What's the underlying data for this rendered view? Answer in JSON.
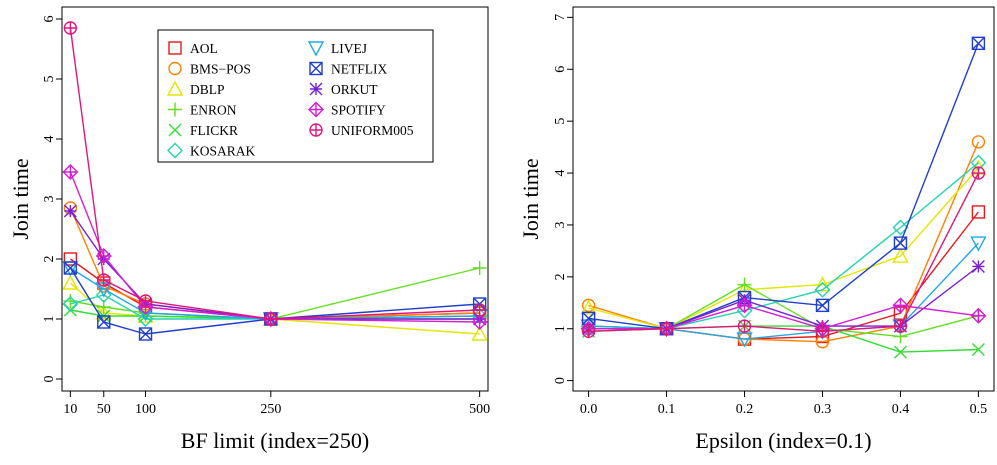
{
  "legend": [
    {
      "name": "AOL",
      "color": "#e41a1c",
      "marker": "square"
    },
    {
      "name": "BMS−POS",
      "color": "#ff7f00",
      "marker": "circle"
    },
    {
      "name": "DBLP",
      "color": "#e5e500",
      "marker": "triangle-up"
    },
    {
      "name": "ENRON",
      "color": "#66dd22",
      "marker": "plus"
    },
    {
      "name": "FLICKR",
      "color": "#33dd33",
      "marker": "x"
    },
    {
      "name": "KOSARAK",
      "color": "#22d4b0",
      "marker": "diamond"
    },
    {
      "name": "LIVEJ",
      "color": "#22a8e8",
      "marker": "triangle-down"
    },
    {
      "name": "NETFLIX",
      "color": "#1f3fcc",
      "marker": "square-x"
    },
    {
      "name": "ORKUT",
      "color": "#7a1fd6",
      "marker": "asterisk"
    },
    {
      "name": "SPOTIFY",
      "color": "#d41fd4",
      "marker": "diamond-plus"
    },
    {
      "name": "UNIFORM005",
      "color": "#e0167a",
      "marker": "circle-plus"
    }
  ],
  "chart_data": [
    {
      "type": "line",
      "xlabel": "BF limit (index=250)",
      "ylabel": "Join time",
      "x": [
        10,
        50,
        100,
        250,
        500
      ],
      "x_ticks": [
        "10",
        "50",
        "100",
        "250",
        "500"
      ],
      "y_ticks": [
        "0",
        "1",
        "2",
        "3",
        "4",
        "5",
        "6"
      ],
      "xlim": [
        0,
        510
      ],
      "ylim": [
        -0.2,
        6.2
      ],
      "legend_position": "top-right",
      "series": [
        {
          "name": "AOL",
          "values": [
            2.0,
            1.6,
            1.2,
            1.0,
            1.1
          ]
        },
        {
          "name": "BMS−POS",
          "values": [
            2.85,
            1.55,
            1.25,
            1.0,
            1.1
          ]
        },
        {
          "name": "DBLP",
          "values": [
            1.6,
            1.1,
            1.05,
            1.0,
            0.75
          ]
        },
        {
          "name": "ENRON",
          "values": [
            1.3,
            1.2,
            1.1,
            1.0,
            1.85
          ]
        },
        {
          "name": "FLICKR",
          "values": [
            1.15,
            1.05,
            1.05,
            1.0,
            1.0
          ]
        },
        {
          "name": "KOSARAK",
          "values": [
            1.25,
            1.4,
            1.0,
            1.0,
            1.05
          ]
        },
        {
          "name": "LIVEJ",
          "values": [
            1.85,
            1.5,
            1.1,
            1.0,
            1.05
          ]
        },
        {
          "name": "NETFLIX",
          "values": [
            1.85,
            0.95,
            0.75,
            1.0,
            1.25
          ]
        },
        {
          "name": "ORKUT",
          "values": [
            2.8,
            2.0,
            1.25,
            1.0,
            1.0
          ]
        },
        {
          "name": "SPOTIFY",
          "values": [
            3.45,
            2.05,
            1.2,
            1.0,
            0.95
          ]
        },
        {
          "name": "UNIFORM005",
          "values": [
            5.85,
            1.65,
            1.3,
            1.0,
            1.15
          ]
        }
      ]
    },
    {
      "type": "line",
      "xlabel": "Epsilon (index=0.1)",
      "ylabel": "Join time",
      "x": [
        0.0,
        0.1,
        0.2,
        0.3,
        0.4,
        0.5
      ],
      "x_ticks": [
        "0.0",
        "0.1",
        "0.2",
        "0.3",
        "0.4",
        "0.5"
      ],
      "y_ticks": [
        "0",
        "1",
        "2",
        "3",
        "4",
        "5",
        "6",
        "7"
      ],
      "xlim": [
        -0.02,
        0.52
      ],
      "ylim": [
        -0.2,
        7.2
      ],
      "series": [
        {
          "name": "AOL",
          "values": [
            1.05,
            1.0,
            0.8,
            0.85,
            1.3,
            3.25
          ]
        },
        {
          "name": "BMS−POS",
          "values": [
            1.45,
            1.0,
            0.8,
            0.75,
            1.05,
            4.6
          ]
        },
        {
          "name": "DBLP",
          "values": [
            1.4,
            1.0,
            1.75,
            1.85,
            2.4,
            4.1
          ]
        },
        {
          "name": "ENRON",
          "values": [
            0.95,
            1.0,
            1.85,
            1.0,
            0.85,
            1.25
          ]
        },
        {
          "name": "FLICKR",
          "values": [
            0.95,
            1.0,
            1.05,
            1.05,
            0.55,
            0.6
          ]
        },
        {
          "name": "KOSARAK",
          "values": [
            1.05,
            1.0,
            1.35,
            1.75,
            2.95,
            4.2
          ]
        },
        {
          "name": "LIVEJ",
          "values": [
            1.05,
            1.0,
            0.8,
            0.95,
            1.05,
            2.65
          ]
        },
        {
          "name": "NETFLIX",
          "values": [
            1.2,
            1.0,
            1.6,
            1.45,
            2.65,
            6.5
          ]
        },
        {
          "name": "ORKUT",
          "values": [
            1.0,
            1.0,
            1.55,
            1.05,
            1.05,
            2.2
          ]
        },
        {
          "name": "SPOTIFY",
          "values": [
            1.0,
            1.0,
            1.45,
            1.0,
            1.45,
            1.25
          ]
        },
        {
          "name": "UNIFORM005",
          "values": [
            0.95,
            1.0,
            1.05,
            0.95,
            1.05,
            4.0
          ]
        }
      ]
    }
  ]
}
